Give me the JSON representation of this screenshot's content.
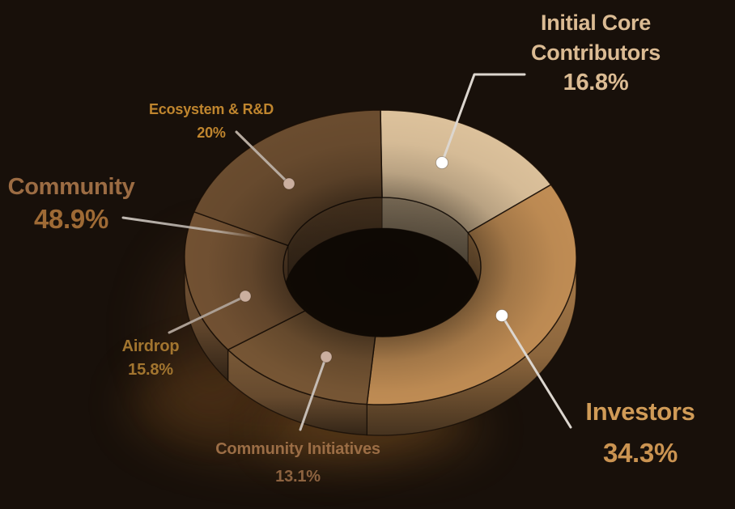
{
  "page": {
    "background_color": "#18100a",
    "description": "3D donut chart of token allocation"
  },
  "chart_data": {
    "type": "pie",
    "variant": "3d-donut",
    "unit": "%",
    "total": 100,
    "start_angle_deg": 0,
    "direction": "clockwise",
    "legend": "none",
    "slices": [
      {
        "label": "Initial Core Contributors",
        "value": 16.8,
        "color": "#dcc19b",
        "group": null
      },
      {
        "label": "Investors",
        "value": 34.3,
        "color": "#c28e55",
        "group": null
      },
      {
        "label": "Community Initiatives",
        "value": 13.1,
        "color": "#8d6740",
        "group": "Community"
      },
      {
        "label": "Airdrop",
        "value": 15.8,
        "color": "#87613d",
        "group": "Community"
      },
      {
        "label": "Ecosystem & R&D",
        "value": 20,
        "color": "#7d5a38",
        "group": "Community"
      }
    ],
    "groups": [
      {
        "label": "Community",
        "value": 48.9
      }
    ]
  },
  "annotations": {
    "icc": {
      "line1": "Initial Core",
      "line2": "Contributors",
      "pct": "16.8%",
      "color": "#dbbb93",
      "pct_color": "#dbbb93"
    },
    "ecosystem": {
      "line1": "Ecosystem & R&D",
      "pct": "20%",
      "color": "#bf852e",
      "pct_color": "#bf852e"
    },
    "community": {
      "line1": "Community",
      "pct": "48.9%",
      "color": "#9c6c43",
      "pct_color": "#9e6a35"
    },
    "airdrop": {
      "line1": "Airdrop",
      "pct": "15.8%",
      "color": "#a2752f",
      "pct_color": "#a2752f"
    },
    "community_initiatives": {
      "line1": "Community Initiatives",
      "pct": "13.1%",
      "color": "#9b6d45",
      "pct_color": "#8d6340"
    },
    "investors": {
      "line1": "Investors",
      "pct": "34.3%",
      "color": "#d09b57",
      "pct_color": "#ca9351"
    }
  },
  "markers": {
    "dot_bright_color": "#ffffff",
    "dot_dim_color": "#cbaf9f",
    "line_bright_color": "#dcd6cf",
    "line_dim_color": "#ab9e93"
  }
}
